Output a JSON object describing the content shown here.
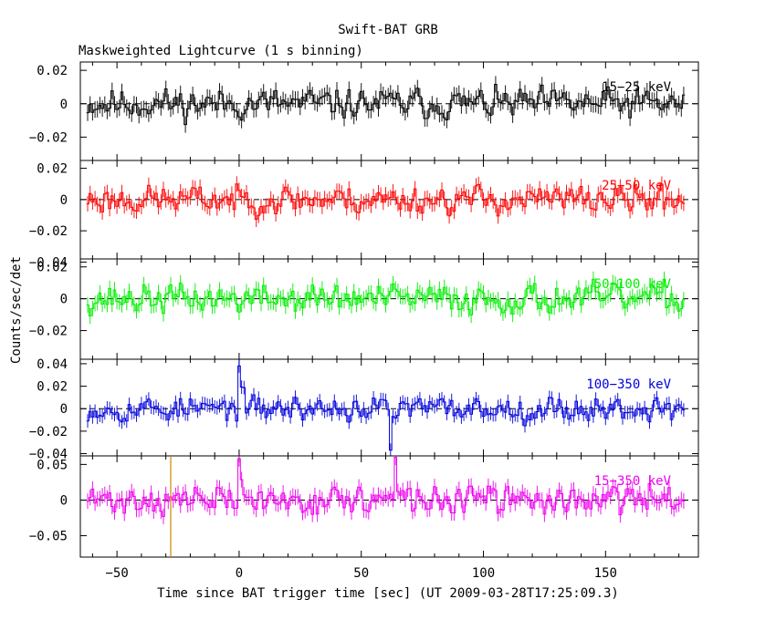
{
  "title": "Swift-BAT GRB",
  "subtitle": "Maskweighted Lightcurve (1 s binning)",
  "chart_data": [
    {
      "type": "line",
      "series": [
        {
          "name": "15-25 keV",
          "color": "#000000",
          "seed": 11,
          "noise": 0.009,
          "ylim": [
            -0.034,
            0.025
          ]
        }
      ],
      "yticks": [
        -0.02,
        0,
        0.02
      ],
      "ytick_labels": [
        "−0.02",
        "0",
        "0.02"
      ],
      "ylim": [
        -0.034,
        0.025
      ],
      "spikes": []
    },
    {
      "type": "line",
      "series": [
        {
          "name": "25-50 keV",
          "color": "#ff0000",
          "seed": 23,
          "noise": 0.009,
          "ylim": [
            -0.038,
            0.025
          ]
        }
      ],
      "yticks": [
        -0.04,
        -0.02,
        0,
        0.02
      ],
      "ytick_labels": [
        "−0.04",
        "−0.02",
        "0",
        "0.02"
      ],
      "ylim": [
        -0.038,
        0.025
      ],
      "spikes": []
    },
    {
      "type": "line",
      "series": [
        {
          "name": "50-100 keV",
          "color": "#00ee00",
          "seed": 37,
          "noise": 0.009,
          "ylim": [
            -0.038,
            0.025
          ]
        }
      ],
      "yticks": [
        -0.02,
        0,
        0.02
      ],
      "ytick_labels": [
        "−0.02",
        "0",
        "0.02"
      ],
      "ylim": [
        -0.038,
        0.025
      ],
      "spikes": []
    },
    {
      "type": "line",
      "series": [
        {
          "name": "100-350 keV",
          "color": "#0000dd",
          "seed": 53,
          "noise": 0.011,
          "ylim": [
            -0.042,
            0.044
          ]
        }
      ],
      "yticks": [
        -0.04,
        -0.02,
        0,
        0.02,
        0.04
      ],
      "ytick_labels": [
        "−0.04",
        "−0.02",
        "0",
        "0.02",
        "0.04"
      ],
      "ylim": [
        -0.042,
        0.044
      ],
      "spikes": [
        {
          "x": 0,
          "y": 0.038
        },
        {
          "x": 62,
          "y": -0.037
        }
      ]
    },
    {
      "type": "line",
      "series": [
        {
          "name": "15-350 keV",
          "color": "#ee00ee",
          "seed": 71,
          "noise": 0.02,
          "ylim": [
            -0.08,
            0.062
          ]
        }
      ],
      "yticks": [
        -0.05,
        0,
        0.05
      ],
      "ytick_labels": [
        "−0.05",
        "0",
        "0.05"
      ],
      "ylim": [
        -0.08,
        0.062
      ],
      "spikes": [
        {
          "x": 0,
          "y": 0.058
        },
        {
          "x": 64,
          "y": 0.06
        }
      ],
      "marker_x": -28,
      "marker_color": "#cc8800"
    }
  ],
  "x_axis": {
    "label": "Time since BAT trigger time [sec] (UT 2009-03-28T17:25:09.3)",
    "xlim": [
      -65,
      188
    ],
    "ticks": [
      -50,
      0,
      50,
      100,
      150
    ],
    "tick_labels": [
      "−50",
      "0",
      "50",
      "100",
      "150"
    ],
    "data_range": [
      -62,
      182
    ]
  },
  "y_axis": {
    "label": "Counts/sec/det"
  }
}
